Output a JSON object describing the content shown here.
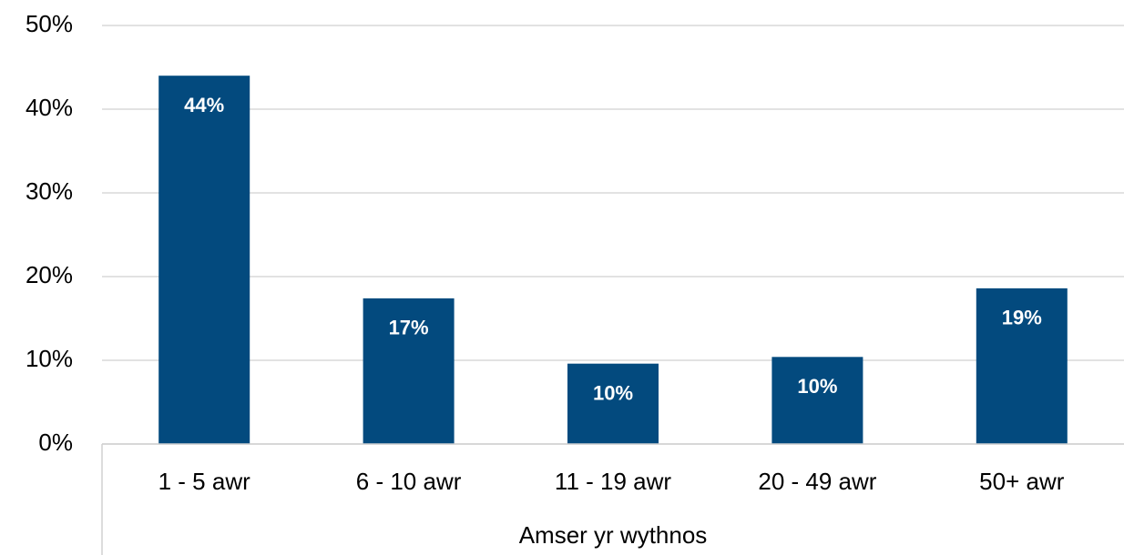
{
  "chart_data": {
    "type": "bar",
    "x_label": "Amser yr wythnos",
    "categories": [
      "1 - 5 awr",
      "6 - 10 awr",
      "11 - 19 awr",
      "20 - 49 awr",
      "50+ awr"
    ],
    "values": [
      44,
      17.4,
      9.6,
      10.4,
      18.6
    ],
    "value_labels": [
      "44%",
      "17%",
      "10%",
      "10%",
      "19%"
    ],
    "color": "#034a7e",
    "ylim": [
      0,
      50
    ],
    "yticks": [
      {
        "value": 0,
        "label": "0%"
      },
      {
        "value": 10,
        "label": "10%"
      },
      {
        "value": 20,
        "label": "20%"
      },
      {
        "value": 30,
        "label": "30%"
      },
      {
        "value": 40,
        "label": "40%"
      },
      {
        "value": 50,
        "label": "50%"
      }
    ],
    "grid": true
  }
}
